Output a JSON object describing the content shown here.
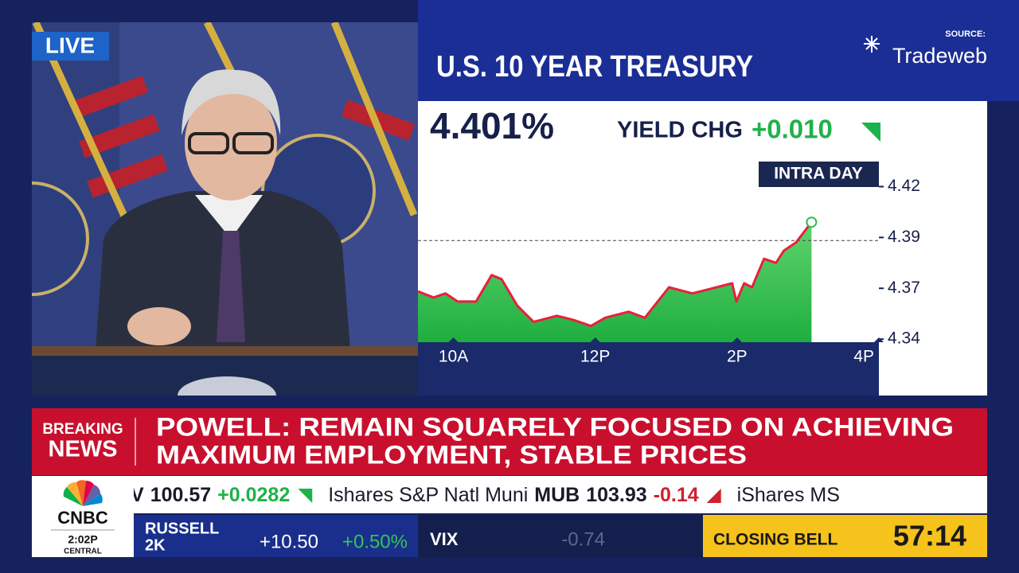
{
  "live": "LIVE",
  "source": {
    "label": "SOURCE:",
    "name": "Tradeweb"
  },
  "chart_data": {
    "type": "line",
    "title": "U.S. 10 YEAR TREASURY",
    "value_label": "4.401%",
    "change_label": "YIELD CHG",
    "change": "+0.010",
    "badge": "INTRA DAY",
    "x": [
      9.5,
      9.72,
      9.89,
      10.06,
      10.32,
      10.54,
      10.68,
      10.9,
      11.13,
      11.46,
      11.69,
      11.94,
      12.14,
      12.47,
      12.7,
      13.04,
      13.37,
      13.71,
      13.93,
      13.99,
      14.1,
      14.21,
      14.38,
      14.55,
      14.66,
      14.83,
      15.05
    ],
    "series": [
      {
        "color": "#e8203c",
        "values": [
          4.366,
          4.363,
          4.365,
          4.361,
          4.361,
          4.374,
          4.372,
          4.359,
          4.351,
          4.354,
          4.352,
          4.349,
          4.353,
          4.356,
          4.353,
          4.368,
          4.365,
          4.368,
          4.37,
          4.361,
          4.37,
          4.368,
          4.382,
          4.38,
          4.386,
          4.39,
          4.4
        ]
      }
    ],
    "fill": "#2dbf4e",
    "xlim": [
      9.5,
      16
    ],
    "xticks": [
      {
        "value": 10,
        "label": "10A"
      },
      {
        "value": 12,
        "label": "12P"
      },
      {
        "value": 14,
        "label": "2P"
      },
      {
        "value": 16,
        "label": "4P"
      }
    ],
    "ylim": [
      4.341,
      4.431
    ],
    "yticks": [
      {
        "value": 4.3425,
        "label": "4.34"
      },
      {
        "value": 4.3675,
        "label": "4.37"
      },
      {
        "value": 4.3925,
        "label": "4.39"
      },
      {
        "value": 4.4175,
        "label": "4.42"
      }
    ],
    "reference_line": 4.391
  },
  "breaking": {
    "label": [
      "BREAKING",
      "NEWS"
    ],
    "headline": [
      "POWELL: REMAIN SQUARELY FOCUSED ON ACHIEVING",
      "MAXIMUM EMPLOYMENT, STABLE PRICES"
    ]
  },
  "ticker": [
    {
      "symbol": "V",
      "price": "100.57",
      "change": "+0.0282"
    },
    {
      "name": "Ishares S&P Natl Muni",
      "symbol": "MUB",
      "price": "103.93",
      "change": "-0.14"
    },
    {
      "name": "iShares MS"
    }
  ],
  "logo": {
    "brand": "CNBC",
    "time": "2:02P",
    "zone": "CENTRAL"
  },
  "markets": {
    "index": [
      "RUSSELL",
      "2K"
    ],
    "points": "+10.50",
    "percent": "+0.50%",
    "vix": {
      "name": "VIX",
      "change": "-0.74"
    }
  },
  "closing_bell": {
    "label": "CLOSING BELL",
    "countdown": "57:14"
  }
}
